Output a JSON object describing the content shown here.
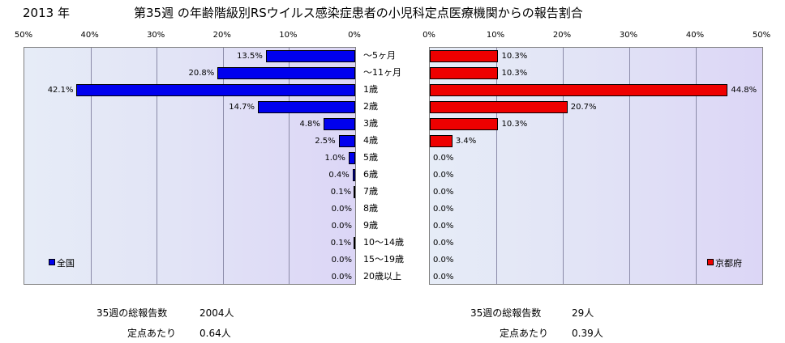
{
  "header": {
    "year": "2013 年",
    "title": "第35週 の年齢階級別RSウイルス感染症患者の小児科定点医療機関からの報告割合"
  },
  "chart_data": [
    {
      "type": "bar",
      "orientation": "horizontal",
      "direction": "right-to-left",
      "legend": "全国",
      "legend_position": "bottom-left",
      "categories": [
        "～5ヶ月",
        "～11ヶ月",
        "1歳",
        "2歳",
        "3歳",
        "4歳",
        "5歳",
        "6歳",
        "7歳",
        "8歳",
        "9歳",
        "10～14歳",
        "15～19歳",
        "20歳以上"
      ],
      "values": [
        13.5,
        20.8,
        42.1,
        14.7,
        4.8,
        2.5,
        1.0,
        0.4,
        0.1,
        0.0,
        0.0,
        0.1,
        0.0,
        0.0
      ],
      "value_labels": [
        "13.5%",
        "20.8%",
        "42.1%",
        "14.7%",
        "4.8%",
        "2.5%",
        "1.0%",
        "0.4%",
        "0.1%",
        "0.0%",
        "0.0%",
        "0.1%",
        "0.0%",
        "0.0%"
      ],
      "xlim": [
        0,
        50
      ],
      "xticks": [
        "50%",
        "40%",
        "30%",
        "20%",
        "10%",
        "0%"
      ],
      "color": "#0000ee",
      "grid": true
    },
    {
      "type": "bar",
      "orientation": "horizontal",
      "direction": "left-to-right",
      "legend": "京都府",
      "legend_position": "bottom-right",
      "categories": [
        "～5ヶ月",
        "～11ヶ月",
        "1歳",
        "2歳",
        "3歳",
        "4歳",
        "5歳",
        "6歳",
        "7歳",
        "8歳",
        "9歳",
        "10～14歳",
        "15～19歳",
        "20歳以上"
      ],
      "values": [
        10.3,
        10.3,
        44.8,
        20.7,
        10.3,
        3.4,
        0.0,
        0.0,
        0.0,
        0.0,
        0.0,
        0.0,
        0.0,
        0.0
      ],
      "value_labels": [
        "10.3%",
        "10.3%",
        "44.8%",
        "20.7%",
        "10.3%",
        "3.4%",
        "0.0%",
        "0.0%",
        "0.0%",
        "0.0%",
        "0.0%",
        "0.0%",
        "0.0%",
        "0.0%"
      ],
      "xlim": [
        0,
        50
      ],
      "xticks": [
        "0%",
        "10%",
        "20%",
        "30%",
        "40%",
        "50%"
      ],
      "color": "#ee0000",
      "grid": true
    }
  ],
  "stats": {
    "national": {
      "reports_label": "35週の総報告数",
      "reports_value": "2004人",
      "per_site_label": "定点あたり",
      "per_site_value": "0.64人"
    },
    "kyoto": {
      "reports_label": "35週の総報告数",
      "reports_value": "29人",
      "per_site_label": "定点あたり",
      "per_site_value": "0.39人"
    }
  }
}
